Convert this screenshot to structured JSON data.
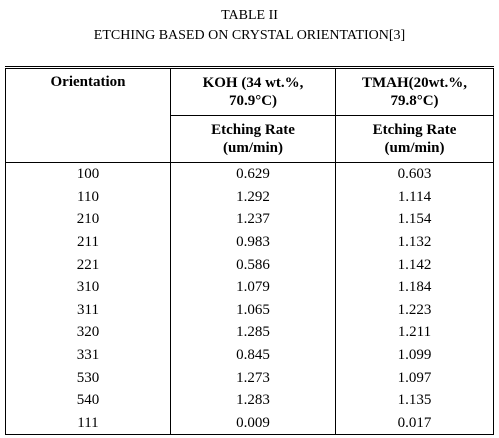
{
  "header": {
    "label": "TABLE II",
    "title": "ETCHING BASED ON CRYSTAL ORIENTATION[3]"
  },
  "table": {
    "columns": [
      {
        "lines": [
          "Orientation"
        ]
      },
      {
        "lines": [
          "KOH (34 wt.%,",
          "70.9°C)"
        ]
      },
      {
        "lines": [
          "TMAH(20wt.%,",
          "79.8°C)"
        ]
      }
    ],
    "subheaders": [
      {
        "lines": [
          "Etching Rate",
          "(um/min)"
        ]
      },
      {
        "lines": [
          "Etching Rate",
          "(um/min)"
        ]
      }
    ],
    "rows": [
      [
        "100",
        "0.629",
        "0.603"
      ],
      [
        "110",
        "1.292",
        "1.114"
      ],
      [
        "210",
        "1.237",
        "1.154"
      ],
      [
        "211",
        "0.983",
        "1.132"
      ],
      [
        "221",
        "0.586",
        "1.142"
      ],
      [
        "310",
        "1.079",
        "1.184"
      ],
      [
        "311",
        "1.065",
        "1.223"
      ],
      [
        "320",
        "1.285",
        "1.211"
      ],
      [
        "331",
        "0.845",
        "1.099"
      ],
      [
        "530",
        "1.273",
        "1.097"
      ],
      [
        "540",
        "1.283",
        "1.135"
      ],
      [
        "111",
        "0.009",
        "0.017"
      ]
    ]
  }
}
